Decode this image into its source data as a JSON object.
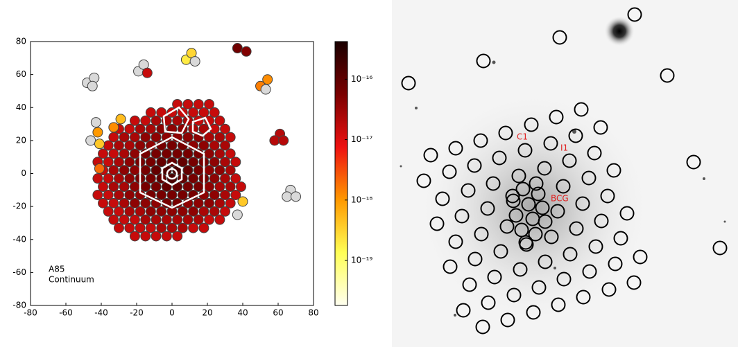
{
  "chart_data": {
    "type": "scatter",
    "annotations": [
      "A85",
      "Continuum"
    ],
    "xlim": [
      -80,
      80
    ],
    "ylim": [
      -80,
      80
    ],
    "xticks": [
      -80,
      -60,
      -40,
      -20,
      0,
      20,
      40,
      60,
      80
    ],
    "yticks": [
      -80,
      -60,
      -40,
      -20,
      0,
      20,
      40,
      60,
      80
    ],
    "x": [
      3,
      9,
      15,
      21,
      -12,
      -6,
      0,
      6,
      12,
      18,
      24,
      -21,
      -15,
      -9,
      -3,
      3,
      9,
      15,
      21,
      27,
      -30,
      -24,
      -18,
      -12,
      -6,
      0,
      6,
      12,
      18,
      24,
      30,
      -33,
      -27,
      -21,
      -15,
      -9,
      -3,
      3,
      9,
      15,
      21,
      27,
      33,
      -36,
      -30,
      -24,
      -18,
      -12,
      -6,
      0,
      6,
      12,
      18,
      24,
      30,
      -39,
      -33,
      -27,
      -21,
      -15,
      -9,
      -3,
      3,
      9,
      15,
      21,
      27,
      33,
      -42,
      -36,
      -30,
      -24,
      -18,
      -12,
      -6,
      0,
      6,
      12,
      18,
      24,
      30,
      36,
      -39,
      -33,
      -27,
      -21,
      -15,
      -9,
      -3,
      3,
      9,
      15,
      21,
      27,
      33,
      -42,
      -36,
      -30,
      -24,
      -18,
      -12,
      -6,
      0,
      6,
      12,
      18,
      24,
      30,
      36,
      -39,
      -33,
      -27,
      -21,
      -15,
      -9,
      -3,
      3,
      9,
      15,
      21,
      27,
      33,
      39,
      -42,
      -36,
      -30,
      -24,
      -18,
      -12,
      -6,
      0,
      6,
      12,
      18,
      24,
      30,
      36,
      -39,
      -33,
      -27,
      -21,
      -15,
      -9,
      -3,
      3,
      9,
      15,
      21,
      27,
      33,
      -36,
      -30,
      -24,
      -18,
      -12,
      -6,
      0,
      6,
      12,
      18,
      24,
      30,
      -33,
      -27,
      -21,
      -15,
      -9,
      -3,
      3,
      9,
      15,
      21,
      27,
      -30,
      -24,
      -18,
      -12,
      -6,
      0,
      6,
      12,
      18,
      -21,
      -15,
      -9,
      -3,
      3,
      -48,
      -44,
      -45,
      -19,
      -16,
      -14,
      8,
      11,
      13,
      37,
      42,
      54,
      50,
      53,
      61,
      58,
      63,
      67,
      65,
      70,
      40,
      37,
      -46,
      -43,
      -42,
      -33,
      -29,
      -41,
      -41
    ],
    "y": [
      42,
      42,
      42,
      42,
      37,
      37,
      37,
      37,
      37,
      37,
      37,
      32,
      32,
      32,
      32,
      32,
      32,
      32,
      32,
      32,
      27,
      27,
      27,
      27,
      27,
      27,
      27,
      27,
      27,
      27,
      27,
      22,
      22,
      22,
      22,
      22,
      22,
      22,
      22,
      22,
      22,
      22,
      22,
      17,
      17,
      17,
      17,
      17,
      17,
      17,
      17,
      17,
      17,
      17,
      17,
      12,
      12,
      12,
      12,
      12,
      12,
      12,
      12,
      12,
      12,
      12,
      12,
      12,
      7,
      7,
      7,
      7,
      7,
      7,
      7,
      7,
      7,
      7,
      7,
      7,
      7,
      7,
      2,
      2,
      2,
      2,
      2,
      2,
      2,
      2,
      2,
      2,
      2,
      2,
      2,
      -3,
      -3,
      -3,
      -3,
      -3,
      -3,
      -3,
      -3,
      -3,
      -3,
      -3,
      -3,
      -3,
      -3,
      -8,
      -8,
      -8,
      -8,
      -8,
      -8,
      -8,
      -8,
      -8,
      -8,
      -8,
      -8,
      -8,
      -8,
      -13,
      -13,
      -13,
      -13,
      -13,
      -13,
      -13,
      -13,
      -13,
      -13,
      -13,
      -13,
      -13,
      -13,
      -18,
      -18,
      -18,
      -18,
      -18,
      -18,
      -18,
      -18,
      -18,
      -18,
      -18,
      -18,
      -18,
      -23,
      -23,
      -23,
      -23,
      -23,
      -23,
      -23,
      -23,
      -23,
      -23,
      -23,
      -23,
      -28,
      -28,
      -28,
      -28,
      -28,
      -28,
      -28,
      -28,
      -28,
      -28,
      -28,
      -33,
      -33,
      -33,
      -33,
      -33,
      -33,
      -33,
      -33,
      -33,
      -38,
      -38,
      -38,
      -38,
      -38,
      55,
      58,
      53,
      62,
      66,
      61,
      69,
      73,
      68,
      76,
      74,
      57,
      53,
      51,
      24,
      20,
      20,
      -10,
      -14,
      -14,
      -17,
      -25,
      20,
      31,
      25,
      28,
      33,
      18,
      3
    ],
    "values": [
      1.5e-17,
      1.5e-17,
      1.5e-17,
      1.5e-17,
      1.5e-17,
      1.5e-17,
      1.5e-17,
      1.5e-17,
      1.5e-17,
      1.5e-17,
      1.5e-17,
      1.5e-17,
      1.5e-17,
      2.5e-17,
      2.5e-17,
      2.5e-17,
      2.5e-17,
      1.5e-17,
      1.5e-17,
      1.5e-17,
      1.5e-17,
      1.5e-17,
      2.5e-17,
      2.5e-17,
      4e-17,
      4e-17,
      4e-17,
      2.5e-17,
      2.5e-17,
      1.5e-17,
      1.5e-17,
      1.5e-17,
      2.5e-17,
      2.5e-17,
      4e-17,
      4e-17,
      4e-17,
      4e-17,
      4e-17,
      4e-17,
      2.5e-17,
      2.5e-17,
      1.5e-17,
      1.5e-17,
      2.5e-17,
      2.5e-17,
      4e-17,
      4e-17,
      6e-17,
      6e-17,
      6e-17,
      4e-17,
      4e-17,
      2.5e-17,
      2.5e-17,
      1.5e-17,
      1.5e-17,
      2.5e-17,
      4e-17,
      6e-17,
      6e-17,
      6e-17,
      6e-17,
      6e-17,
      6e-17,
      4e-17,
      2.5e-17,
      1.5e-17,
      1.5e-17,
      1.5e-17,
      2.5e-17,
      4e-17,
      6e-17,
      6e-17,
      9e-17,
      9e-17,
      9e-17,
      6e-17,
      6e-17,
      4e-17,
      2.5e-17,
      1.5e-17,
      1.5e-17,
      2.5e-17,
      4e-17,
      4e-17,
      6e-17,
      9e-17,
      1.5e-16,
      1.5e-16,
      9e-17,
      6e-17,
      4e-17,
      4e-17,
      2.5e-17,
      1.5e-17,
      1.5e-17,
      2.5e-17,
      4e-17,
      6e-17,
      6e-17,
      9e-17,
      1.5e-16,
      9e-17,
      6e-17,
      6e-17,
      4e-17,
      2.5e-17,
      1.5e-17,
      1.5e-17,
      2.5e-17,
      2.5e-17,
      4e-17,
      6e-17,
      6e-17,
      9e-17,
      9e-17,
      6e-17,
      6e-17,
      4e-17,
      2.5e-17,
      2.5e-17,
      1.5e-17,
      1.5e-17,
      1.5e-17,
      2.5e-17,
      4e-17,
      4e-17,
      6e-17,
      6e-17,
      6e-17,
      6e-17,
      6e-17,
      4e-17,
      4e-17,
      2.5e-17,
      1.5e-17,
      1.5e-17,
      1.5e-17,
      2.5e-17,
      4e-17,
      4e-17,
      4e-17,
      6e-17,
      6e-17,
      4e-17,
      4e-17,
      4e-17,
      2.5e-17,
      1.5e-17,
      1.5e-17,
      1.5e-17,
      2.5e-17,
      2.5e-17,
      4e-17,
      4e-17,
      4e-17,
      4e-17,
      4e-17,
      2.5e-17,
      2.5e-17,
      1.5e-17,
      1.5e-17,
      1.5e-17,
      1.5e-17,
      2.5e-17,
      2.5e-17,
      2.5e-17,
      2.5e-17,
      2.5e-17,
      2.5e-17,
      1.5e-17,
      1.5e-17,
      1.5e-17,
      1.5e-17,
      1.5e-17,
      1.5e-17,
      2.5e-17,
      2.5e-17,
      2.5e-17,
      1.5e-17,
      1.5e-17,
      1.5e-17,
      1.5e-17,
      1.5e-17,
      1.5e-17,
      1.5e-17,
      null,
      null,
      null,
      null,
      null,
      1.5e-17,
      2e-19,
      3e-19,
      null,
      7e-17,
      5e-17,
      1.2e-18,
      1.5e-18,
      null,
      2e-17,
      2e-17,
      2e-17,
      null,
      null,
      null,
      4e-19,
      null,
      null,
      null,
      1e-18,
      1.2e-18,
      5e-19,
      4e-19,
      2e-18
    ],
    "missing_color": "#d9d9d9",
    "colorbar": {
      "scale": "log",
      "clim": [
        1.8e-20,
        4.2e-16
      ],
      "colormap": [
        "#fffff0",
        "#ffff55",
        "#ff9900",
        "#ee1111",
        "#7a0000",
        "#1a0000"
      ],
      "ticks": [
        {
          "value": 1e-19,
          "label": "10⁻¹⁹"
        },
        {
          "value": 1e-18,
          "label": "10⁻¹⁸"
        },
        {
          "value": 1e-17,
          "label": "10⁻¹⁷"
        },
        {
          "value": 1e-16,
          "label": "10⁻¹⁶"
        }
      ]
    }
  },
  "image": {
    "labels": [
      "C1",
      "I1",
      "BCG"
    ]
  }
}
